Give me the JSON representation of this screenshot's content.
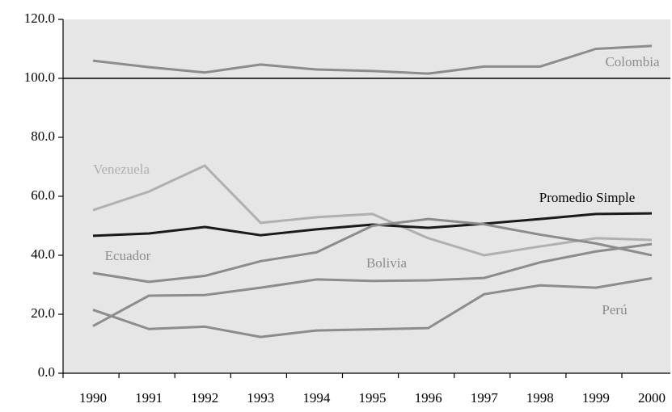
{
  "chart_data": {
    "type": "line",
    "categories": [
      "1990",
      "1991",
      "1992",
      "1993",
      "1994",
      "1995",
      "1996",
      "1997",
      "1998",
      "1999",
      "2000"
    ],
    "series": [
      {
        "name": "Colombia",
        "color": "#8c8c8c",
        "values": [
          106,
          103.8,
          102,
          104.7,
          103,
          102.5,
          101.6,
          104,
          104,
          110,
          111
        ]
      },
      {
        "name": "Venezuela",
        "color": "#b0b0b0",
        "values": [
          55.3,
          61.6,
          70.4,
          51,
          52.9,
          54,
          45.8,
          40,
          43,
          45.8,
          45.2
        ]
      },
      {
        "name": "Promedio Simple",
        "color": "#1a1a1a",
        "values": [
          46.6,
          47.4,
          49.6,
          46.8,
          48.8,
          50.4,
          49.3,
          50.7,
          52.3,
          54,
          54.2
        ]
      },
      {
        "name": "Ecuador",
        "color": "#8c8c8c",
        "values": [
          34,
          31,
          33,
          38,
          41,
          50,
          52.3,
          50.5,
          47,
          44,
          40
        ]
      },
      {
        "name": "Bolivia",
        "color": "#8c8c8c",
        "values": [
          16,
          26.3,
          26.5,
          29,
          31.8,
          31.3,
          31.5,
          32.3,
          37.6,
          41.3,
          43.8
        ]
      },
      {
        "name": "Perú",
        "color": "#8c8c8c",
        "values": [
          21.5,
          15,
          15.8,
          12.3,
          14.5,
          14.9,
          15.3,
          26.8,
          29.8,
          29,
          32.2
        ]
      }
    ],
    "ylim": [
      0,
      120
    ],
    "yticks": [
      {
        "value": 0,
        "label": "0.0"
      },
      {
        "value": 20,
        "label": "20.0"
      },
      {
        "value": 40,
        "label": "40.0"
      },
      {
        "value": 60,
        "label": "60.0"
      },
      {
        "value": 80,
        "label": "80.0"
      },
      {
        "value": 100,
        "label": "100.0"
      },
      {
        "value": 120,
        "label": "120.0"
      }
    ],
    "reference_line": 100,
    "plot_background": "#e6e6e6"
  }
}
